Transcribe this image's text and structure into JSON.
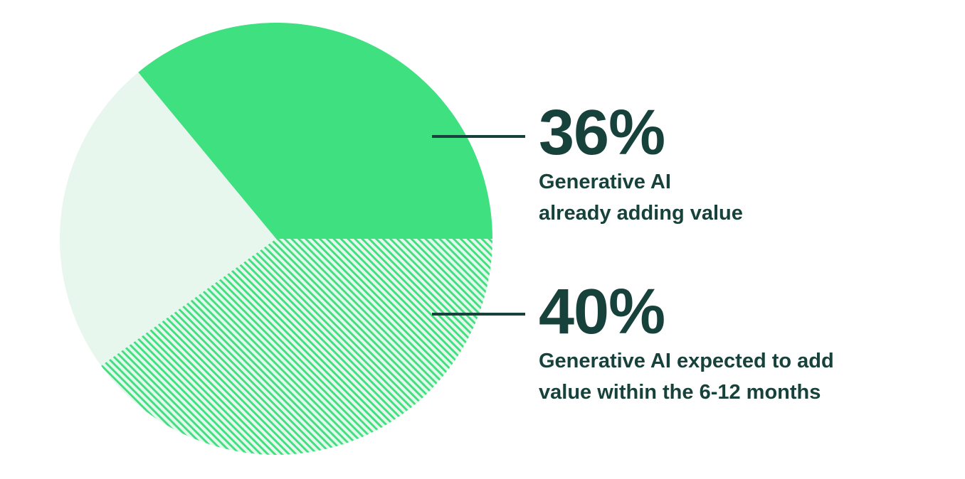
{
  "colors": {
    "accent_green": "#3EE07F",
    "light_green": "#E7F7ED",
    "dark_teal": "#17423B",
    "background": "#FFFFFF"
  },
  "chart_data": {
    "type": "pie",
    "title": "",
    "unit": "%",
    "rotation_deg": -39.6,
    "legend_position": "none",
    "labels_as": "callouts-right",
    "slices": [
      {
        "label": "Generative AI already adding value",
        "value": 36,
        "fill": "solid-green"
      },
      {
        "label": "Generative AI expected to add value within the 6-12 months",
        "value": 40,
        "fill": "green-hatch"
      },
      {
        "label": "",
        "value": 24,
        "fill": "light-green"
      }
    ]
  },
  "callouts": [
    {
      "value_label": "36%",
      "description_lines": [
        "Generative AI",
        "already adding value"
      ]
    },
    {
      "value_label": "40%",
      "description_lines": [
        "Generative AI expected to add",
        "value within the 6-12 months"
      ]
    }
  ]
}
